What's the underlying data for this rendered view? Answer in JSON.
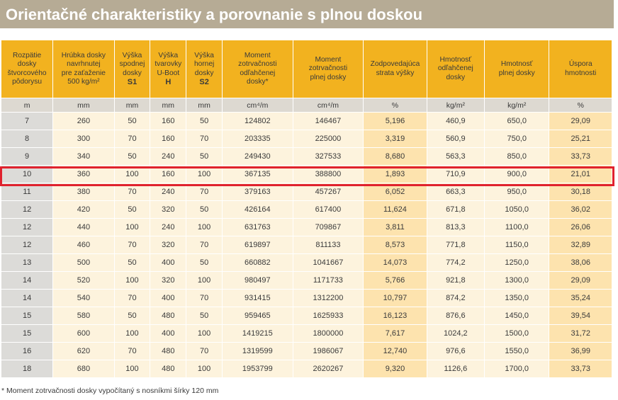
{
  "title": "Orientačné charakteristiky a porovnanie s plnou doskou",
  "columns": [
    {
      "label": "Rozpätie\ndosky\nštvorcového\npôdorysu",
      "sub": "",
      "unit": "m"
    },
    {
      "label": "Hrúbka dosky\nnavrhnutej\npre zaťaženie\n500 kg/m²",
      "sub": "",
      "unit": "mm"
    },
    {
      "label": "Výška\nspodnej\ndosky",
      "sub": "S1",
      "unit": "mm"
    },
    {
      "label": "Výška\ntvarovky\nU-Boot",
      "sub": "H",
      "unit": "mm"
    },
    {
      "label": "Výška\nhornej\ndosky",
      "sub": "S2",
      "unit": "mm"
    },
    {
      "label": "Moment\nzotrvačnosti\nodľahčenej\ndosky*",
      "sub": "",
      "unit": "cm⁴/m"
    },
    {
      "label": "Moment\nzotrvačnosti\nplnej dosky",
      "sub": "",
      "unit": "cm⁴/m"
    },
    {
      "label": "Zodpovedajúca\nstrata výšky",
      "sub": "",
      "unit": "%"
    },
    {
      "label": "Hmotnosť\nodľahčenej\ndosky",
      "sub": "",
      "unit": "kg/m²"
    },
    {
      "label": "Hmotnosť\nplnej dosky",
      "sub": "",
      "unit": "kg/m²"
    },
    {
      "label": "Úspora\nhmotnosti",
      "sub": "",
      "unit": "%"
    }
  ],
  "rows": [
    [
      "7",
      "260",
      "50",
      "160",
      "50",
      "124802",
      "146467",
      "5,196",
      "460,9",
      "650,0",
      "29,09"
    ],
    [
      "8",
      "300",
      "70",
      "160",
      "70",
      "203335",
      "225000",
      "3,319",
      "560,9",
      "750,0",
      "25,21"
    ],
    [
      "9",
      "340",
      "50",
      "240",
      "50",
      "249430",
      "327533",
      "8,680",
      "563,3",
      "850,0",
      "33,73"
    ],
    [
      "10",
      "360",
      "100",
      "160",
      "100",
      "367135",
      "388800",
      "1,893",
      "710,9",
      "900,0",
      "21,01"
    ],
    [
      "11",
      "380",
      "70",
      "240",
      "70",
      "379163",
      "457267",
      "6,052",
      "663,3",
      "950,0",
      "30,18"
    ],
    [
      "12",
      "420",
      "50",
      "320",
      "50",
      "426164",
      "617400",
      "11,624",
      "671,8",
      "1050,0",
      "36,02"
    ],
    [
      "12",
      "440",
      "100",
      "240",
      "100",
      "631763",
      "709867",
      "3,811",
      "813,3",
      "1100,0",
      "26,06"
    ],
    [
      "12",
      "460",
      "70",
      "320",
      "70",
      "619897",
      "811133",
      "8,573",
      "771,8",
      "1150,0",
      "32,89"
    ],
    [
      "13",
      "500",
      "50",
      "400",
      "50",
      "660882",
      "1041667",
      "14,073",
      "774,2",
      "1250,0",
      "38,06"
    ],
    [
      "14",
      "520",
      "100",
      "320",
      "100",
      "980497",
      "1171733",
      "5,766",
      "921,8",
      "1300,0",
      "29,09"
    ],
    [
      "14",
      "540",
      "70",
      "400",
      "70",
      "931415",
      "1312200",
      "10,797",
      "874,2",
      "1350,0",
      "35,24"
    ],
    [
      "15",
      "580",
      "50",
      "480",
      "50",
      "959465",
      "1625933",
      "16,123",
      "876,6",
      "1450,0",
      "39,54"
    ],
    [
      "15",
      "600",
      "100",
      "400",
      "100",
      "1419215",
      "1800000",
      "7,617",
      "1024,2",
      "1500,0",
      "31,72"
    ],
    [
      "16",
      "620",
      "70",
      "480",
      "70",
      "1319599",
      "1986067",
      "12,740",
      "976,6",
      "1550,0",
      "36,99"
    ],
    [
      "18",
      "680",
      "100",
      "480",
      "100",
      "1953799",
      "2620267",
      "9,320",
      "1126,6",
      "1700,0",
      "33,73"
    ]
  ],
  "highlighted_row": 3,
  "footnote": "* Moment zotrvačnosti dosky vypočítaný s nosníkmi šírky 120 mm",
  "colors": {
    "title_bg": "#b6ab95",
    "header_bg": "#f2b21f",
    "unit_bg": "#ddd9d1",
    "cell_bg": "#fdf3dd",
    "first_col_bg": "#dcdbd8",
    "accent_col_bg": "#fde3ae",
    "highlight_border": "#e0222e"
  }
}
